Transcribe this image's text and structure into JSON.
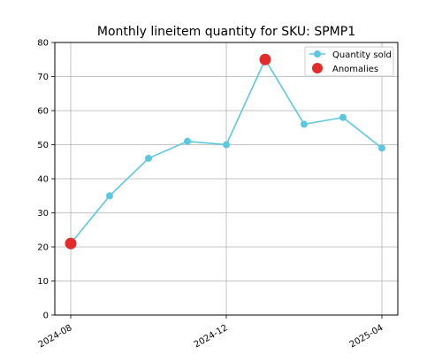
{
  "chart_data": {
    "type": "line",
    "title": "Monthly lineitem quantity for SKU: SPMP1",
    "xlabel": "",
    "ylabel": "",
    "x": [
      "2024-08",
      "2024-09",
      "2024-10",
      "2024-11",
      "2024-12",
      "2025-01",
      "2025-02",
      "2025-03",
      "2025-04"
    ],
    "xticks": [
      "2024-08",
      "2024-12",
      "2025-04"
    ],
    "ylim": [
      0,
      80
    ],
    "yticks": [
      0,
      10,
      20,
      30,
      40,
      50,
      60,
      70,
      80
    ],
    "grid": true,
    "legend_position": "top-right",
    "series": [
      {
        "name": "Quantity sold",
        "values": [
          21,
          35,
          46,
          51,
          50,
          75,
          56,
          58,
          49
        ],
        "color": "#5bc8e0"
      }
    ],
    "anomalies": {
      "name": "Anomalies",
      "points": [
        {
          "x": "2024-08",
          "y": 21
        },
        {
          "x": "2025-01",
          "y": 75
        }
      ],
      "color": "#e32b2b"
    }
  }
}
